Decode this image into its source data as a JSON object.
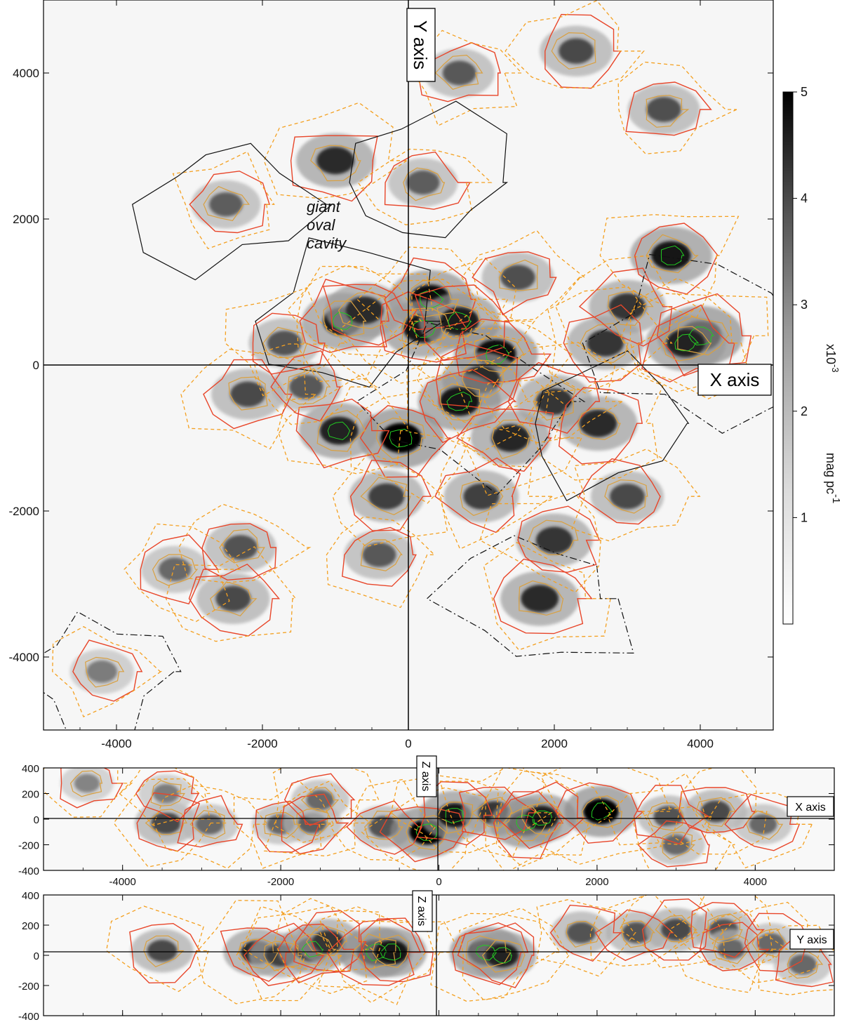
{
  "colors": {
    "contour_red": "#e8462a",
    "contour_orange_dashed": "#f4a020",
    "contour_pink_dotted": "#f0a0b0",
    "contour_black": "#111111",
    "contour_green": "#22cc22",
    "axis_line": "#000000"
  },
  "chart_data": [
    {
      "type": "heatmap",
      "view": "X-Y plane",
      "xlim": [
        -5000,
        5000
      ],
      "ylim": [
        -5000,
        5000
      ],
      "xticks": [
        -4000,
        -2000,
        0,
        2000,
        4000
      ],
      "yticks": [
        -4000,
        -2000,
        0,
        2000,
        4000
      ],
      "axis_labels": {
        "x_box": "X axis",
        "y_box": "Y axis"
      },
      "annotation": [
        "giant",
        "oval",
        "cavity"
      ],
      "colorbar": {
        "ticks": [
          1,
          2,
          3,
          4,
          5
        ],
        "min": 0,
        "max": 5,
        "scale_label": "x10",
        "scale_exp": "-3",
        "unit_label": "mag pc",
        "unit_exp": "-1"
      },
      "blobs": [
        {
          "x": 300,
          "y": 900,
          "v": 4.8
        },
        {
          "x": 200,
          "y": 500,
          "v": 4.6
        },
        {
          "x": -900,
          "y": 600,
          "v": 4.5
        },
        {
          "x": -600,
          "y": 750,
          "v": 4.2
        },
        {
          "x": 700,
          "y": 600,
          "v": 4.5
        },
        {
          "x": 1200,
          "y": 150,
          "v": 4.8
        },
        {
          "x": 1000,
          "y": -200,
          "v": 4.2
        },
        {
          "x": 700,
          "y": -500,
          "v": 4.7
        },
        {
          "x": -100,
          "y": -1000,
          "v": 5.0
        },
        {
          "x": -950,
          "y": -900,
          "v": 4.4
        },
        {
          "x": 1400,
          "y": -1000,
          "v": 4.3
        },
        {
          "x": 2000,
          "y": -500,
          "v": 4.0
        },
        {
          "x": 2600,
          "y": -800,
          "v": 4.2
        },
        {
          "x": 2700,
          "y": 300,
          "v": 4.0
        },
        {
          "x": 3000,
          "y": 800,
          "v": 4.0
        },
        {
          "x": 3600,
          "y": 1500,
          "v": 4.6
        },
        {
          "x": 4000,
          "y": 400,
          "v": 5.0
        },
        {
          "x": 3800,
          "y": 300,
          "v": 4.4
        },
        {
          "x": 3500,
          "y": 3500,
          "v": 3.5
        },
        {
          "x": 2300,
          "y": 4300,
          "v": 3.6
        },
        {
          "x": 700,
          "y": 4000,
          "v": 3.3
        },
        {
          "x": -1000,
          "y": 2800,
          "v": 4.2
        },
        {
          "x": -2500,
          "y": 2200,
          "v": 3.2
        },
        {
          "x": -2200,
          "y": -400,
          "v": 3.6
        },
        {
          "x": -1400,
          "y": -300,
          "v": 3.3
        },
        {
          "x": -2300,
          "y": -2500,
          "v": 3.4
        },
        {
          "x": -2400,
          "y": -3200,
          "v": 3.6
        },
        {
          "x": 1800,
          "y": -3200,
          "v": 4.2
        },
        {
          "x": 2000,
          "y": -2400,
          "v": 4.0
        },
        {
          "x": 1000,
          "y": -1800,
          "v": 3.8
        },
        {
          "x": -300,
          "y": -1800,
          "v": 3.8
        },
        {
          "x": -400,
          "y": -2600,
          "v": 3.3
        },
        {
          "x": 200,
          "y": 2500,
          "v": 3.2
        },
        {
          "x": -1700,
          "y": 300,
          "v": 3.4
        },
        {
          "x": 3000,
          "y": -1800,
          "v": 3.6
        },
        {
          "x": 1500,
          "y": 1200,
          "v": 3.5
        },
        {
          "x": -3200,
          "y": -2800,
          "v": 3.0
        },
        {
          "x": -4200,
          "y": -4200,
          "v": 2.6
        }
      ]
    },
    {
      "type": "heatmap",
      "view": "X-Z plane",
      "xlim": [
        -5000,
        5000
      ],
      "ylim": [
        -400,
        400
      ],
      "xticks": [
        -4000,
        -2000,
        0,
        2000,
        4000
      ],
      "yticks": [
        -400,
        -200,
        0,
        200,
        400
      ],
      "axis_labels": {
        "x_box": "X axis",
        "z_box": "Z axis"
      },
      "blobs": [
        {
          "x": -3450,
          "y": -30,
          "v": 3.6
        },
        {
          "x": -2900,
          "y": -40,
          "v": 3.0
        },
        {
          "x": -2000,
          "y": -40,
          "v": 3.0
        },
        {
          "x": -1600,
          "y": -30,
          "v": 3.2
        },
        {
          "x": -1500,
          "y": 150,
          "v": 3.0
        },
        {
          "x": -700,
          "y": -60,
          "v": 3.4
        },
        {
          "x": -150,
          "y": -100,
          "v": 5.0
        },
        {
          "x": 200,
          "y": 30,
          "v": 4.6
        },
        {
          "x": 700,
          "y": 50,
          "v": 4.0
        },
        {
          "x": 1100,
          "y": -30,
          "v": 4.8
        },
        {
          "x": 1300,
          "y": 10,
          "v": 4.5
        },
        {
          "x": 2050,
          "y": 60,
          "v": 5.0
        },
        {
          "x": 2900,
          "y": 20,
          "v": 3.4
        },
        {
          "x": 3500,
          "y": 60,
          "v": 3.6
        },
        {
          "x": 3000,
          "y": -200,
          "v": 3.0
        },
        {
          "x": 4100,
          "y": -40,
          "v": 3.0
        },
        {
          "x": -4450,
          "y": 280,
          "v": 2.4
        },
        {
          "x": -3450,
          "y": 200,
          "v": 2.6
        }
      ]
    },
    {
      "type": "heatmap",
      "view": "Y-Z plane",
      "xlim": [
        -5000,
        5000
      ],
      "ylim": [
        -400,
        400
      ],
      "xticks": [
        -4000,
        -2000,
        0,
        2000,
        4000
      ],
      "yticks": [
        -400,
        -200,
        0,
        200,
        400
      ],
      "axis_labels": {
        "x_box": "Y axis",
        "z_box": "Z axis"
      },
      "blobs": [
        {
          "x": -3500,
          "y": 30,
          "v": 3.6
        },
        {
          "x": -2300,
          "y": 20,
          "v": 4.2
        },
        {
          "x": -2000,
          "y": 0,
          "v": 3.8
        },
        {
          "x": -1600,
          "y": 40,
          "v": 4.4
        },
        {
          "x": -1400,
          "y": 90,
          "v": 4.0
        },
        {
          "x": -800,
          "y": 20,
          "v": 5.0
        },
        {
          "x": -600,
          "y": 20,
          "v": 4.6
        },
        {
          "x": 600,
          "y": 20,
          "v": 5.0
        },
        {
          "x": 800,
          "y": 0,
          "v": 4.4
        },
        {
          "x": 1800,
          "y": 150,
          "v": 3.4
        },
        {
          "x": 2500,
          "y": 150,
          "v": 3.4
        },
        {
          "x": 3000,
          "y": 170,
          "v": 3.6
        },
        {
          "x": 3600,
          "y": 170,
          "v": 3.4
        },
        {
          "x": 3700,
          "y": 40,
          "v": 3.0
        },
        {
          "x": 4200,
          "y": 80,
          "v": 3.0
        },
        {
          "x": 4600,
          "y": -60,
          "v": 3.0
        }
      ]
    }
  ]
}
